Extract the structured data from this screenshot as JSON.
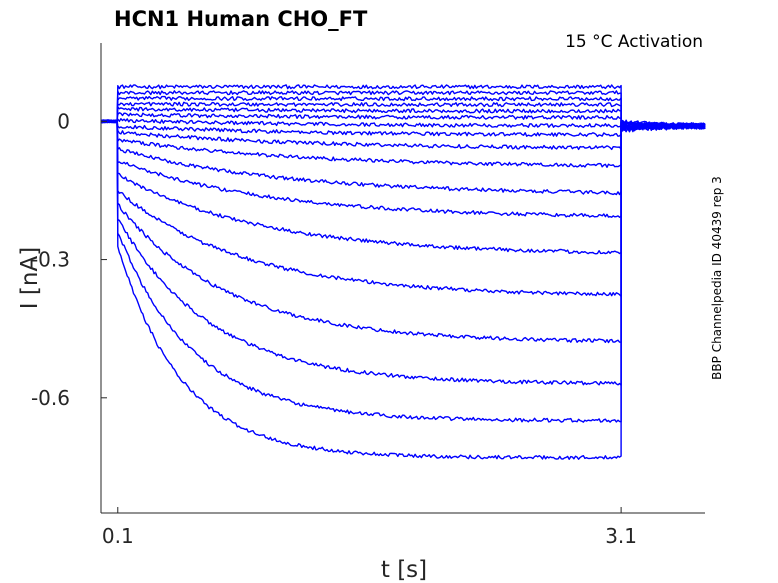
{
  "chart_data": {
    "type": "line",
    "title": "HCN1  Human  CHO_FT",
    "annotation": "15 °C  Activation",
    "side_note": "BBP Channelpedia ID 40439 rep 3",
    "xlabel": "t [s]",
    "ylabel": "I [nA]",
    "xlim": [
      0.0,
      3.6
    ],
    "ylim": [
      -0.85,
      0.17
    ],
    "xticks": [
      0.1,
      3.1
    ],
    "xtick_labels": [
      "0.1",
      "3.1"
    ],
    "yticks": [
      0,
      -0.3,
      -0.6
    ],
    "ytick_labels": [
      "0",
      "-0.3",
      "-0.6"
    ],
    "grid": false,
    "step_start": 0.1,
    "step_end": 3.1,
    "holding_current": 0.0,
    "tail_current": -0.01,
    "series_color": "#0000ff",
    "series": [
      {
        "initial": 0.075,
        "steady": 0.075,
        "tau": 1.0
      },
      {
        "initial": 0.062,
        "steady": 0.062,
        "tau": 1.0
      },
      {
        "initial": 0.05,
        "steady": 0.049,
        "tau": 1.0
      },
      {
        "initial": 0.038,
        "steady": 0.036,
        "tau": 1.0
      },
      {
        "initial": 0.027,
        "steady": 0.022,
        "tau": 1.0
      },
      {
        "initial": 0.015,
        "steady": 0.008,
        "tau": 1.0
      },
      {
        "initial": 0.003,
        "steady": -0.01,
        "tau": 1.0
      },
      {
        "initial": -0.01,
        "steady": -0.03,
        "tau": 1.0
      },
      {
        "initial": -0.023,
        "steady": -0.06,
        "tau": 1.1
      },
      {
        "initial": -0.04,
        "steady": -0.1,
        "tau": 1.1
      },
      {
        "initial": -0.06,
        "steady": -0.16,
        "tau": 1.0
      },
      {
        "initial": -0.085,
        "steady": -0.21,
        "tau": 0.9
      },
      {
        "initial": -0.115,
        "steady": -0.29,
        "tau": 0.85
      },
      {
        "initial": -0.15,
        "steady": -0.38,
        "tau": 0.75
      },
      {
        "initial": -0.18,
        "steady": -0.48,
        "tau": 0.65
      },
      {
        "initial": -0.21,
        "steady": -0.57,
        "tau": 0.55
      },
      {
        "initial": -0.24,
        "steady": -0.65,
        "tau": 0.45
      },
      {
        "initial": -0.27,
        "steady": -0.73,
        "tau": 0.38
      }
    ]
  }
}
